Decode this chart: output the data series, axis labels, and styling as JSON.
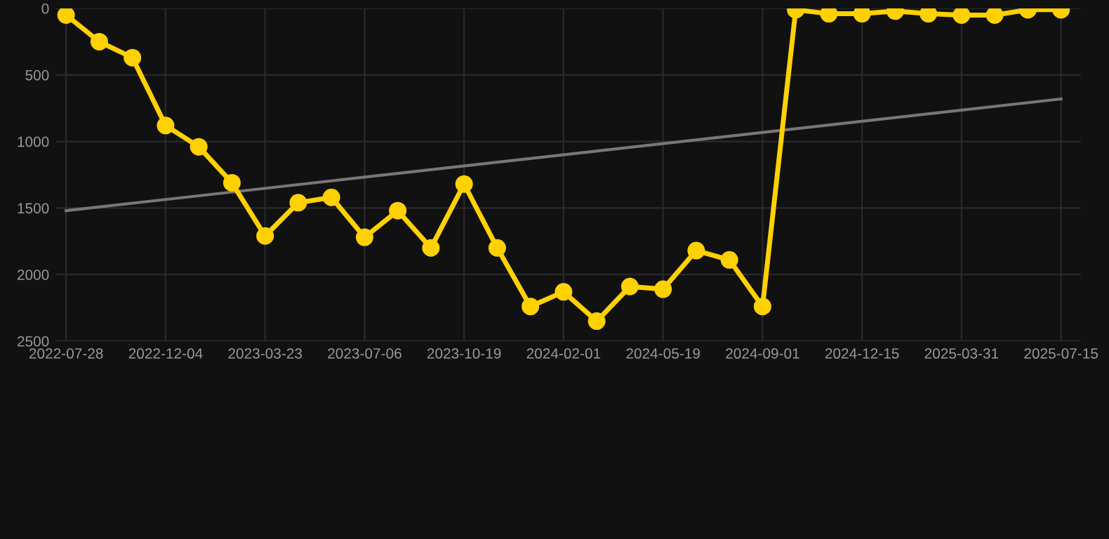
{
  "chart_data": {
    "type": "line",
    "categories": [
      "2022-07-28",
      null,
      null,
      "2022-12-04",
      null,
      null,
      "2023-03-23",
      null,
      null,
      "2023-07-06",
      null,
      null,
      "2023-10-19",
      null,
      null,
      "2024-02-01",
      null,
      null,
      "2024-05-19",
      null,
      null,
      "2024-09-01",
      null,
      null,
      "2024-12-15",
      null,
      null,
      "2025-03-31",
      null,
      null,
      "2025-07-15"
    ],
    "series": [
      {
        "color": "#ffd100",
        "marker": "circle",
        "values": [
          50,
          250,
          370,
          880,
          1040,
          1310,
          1710,
          1460,
          1420,
          1720,
          1520,
          1800,
          1320,
          1800,
          2240,
          2130,
          2350,
          2090,
          2110,
          1820,
          1890,
          2240,
          10,
          40,
          40,
          20,
          40,
          50,
          50,
          10,
          10
        ]
      },
      {
        "type": "line",
        "color": "#777777",
        "marker": "none",
        "values": [
          1520,
          null,
          null,
          null,
          null,
          null,
          null,
          null,
          null,
          null,
          null,
          null,
          null,
          null,
          null,
          null,
          null,
          null,
          null,
          null,
          null,
          null,
          null,
          null,
          null,
          null,
          null,
          null,
          null,
          null,
          680
        ]
      }
    ],
    "ylim": [
      2500,
      0
    ],
    "yticks": [
      0,
      500,
      1000,
      1500,
      2000,
      2500
    ],
    "grid": true
  }
}
